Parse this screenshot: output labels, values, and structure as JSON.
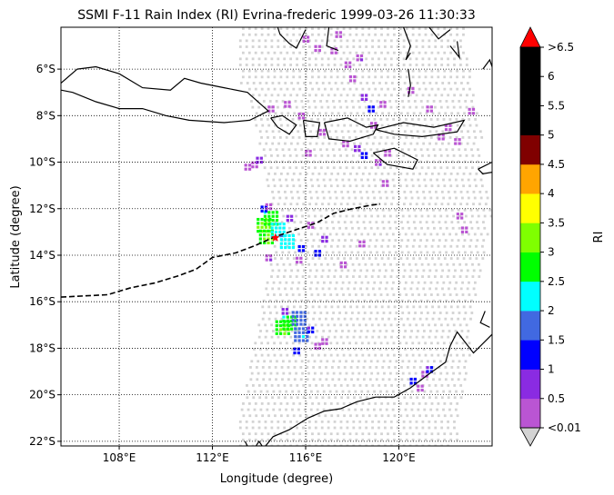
{
  "chart_data": {
    "type": "scatter",
    "title": "SSMI F-11 Rain Index (RI) Evrina-frederic 1999-03-26 11:30:33",
    "xlabel": "Longitude (degree)",
    "ylabel": "Latitude (degree)",
    "xlim": [
      105.5,
      124
    ],
    "ylim": [
      -22.2,
      -4.2
    ],
    "x_ticks": [
      {
        "value": 108,
        "label": "108°E"
      },
      {
        "value": 112,
        "label": "112°E"
      },
      {
        "value": 116,
        "label": "116°E"
      },
      {
        "value": 120,
        "label": "120°E"
      }
    ],
    "y_ticks": [
      {
        "value": -6,
        "label": "6°S"
      },
      {
        "value": -8,
        "label": "8°S"
      },
      {
        "value": -10,
        "label": "10°S"
      },
      {
        "value": -12,
        "label": "12°S"
      },
      {
        "value": -14,
        "label": "14°S"
      },
      {
        "value": -16,
        "label": "16°S"
      },
      {
        "value": -18,
        "label": "18°S"
      },
      {
        "value": -20,
        "label": "20°S"
      },
      {
        "value": -22,
        "label": "22°S"
      }
    ],
    "grid": "dotted",
    "swath_background_color": "#d3d3d3",
    "colorbar": {
      "label": "RI",
      "boundaries": [
        0.01,
        0.5,
        1,
        1.5,
        2,
        2.5,
        3,
        3.5,
        4,
        4.5,
        5,
        5.5,
        6,
        6.5
      ],
      "tick_labels": [
        "<0.01",
        "0.5",
        "1",
        "1.5",
        "2",
        "2.5",
        "3",
        "3.5",
        "4",
        "4.5",
        "5",
        "5.5",
        "6",
        ">6.5"
      ],
      "colors": [
        "#ba55d3",
        "#8a2be2",
        "#0000ff",
        "#4169e1",
        "#00ffff",
        "#00ff00",
        "#7fff00",
        "#ffff00",
        "#ffa500",
        "#800000",
        "#000000",
        "#000000",
        "#000000"
      ],
      "under_color": "#d3d3d3",
      "over_color": "#ff0000"
    },
    "track": {
      "style": "dashed",
      "color": "#000000",
      "points": [
        [
          105.5,
          -15.8
        ],
        [
          106.5,
          -15.75
        ],
        [
          107.5,
          -15.7
        ],
        [
          108.5,
          -15.4
        ],
        [
          109.5,
          -15.2
        ],
        [
          110.5,
          -14.9
        ],
        [
          111.3,
          -14.6
        ],
        [
          112.0,
          -14.1
        ],
        [
          113.0,
          -13.9
        ],
        [
          113.8,
          -13.6
        ],
        [
          114.7,
          -13.2
        ],
        [
          115.6,
          -12.9
        ],
        [
          116.5,
          -12.6
        ],
        [
          117.2,
          -12.2
        ],
        [
          118.0,
          -12.0
        ],
        [
          118.8,
          -11.85
        ],
        [
          119.2,
          -11.8
        ]
      ],
      "center_marker": {
        "x": 114.7,
        "y": -13.25,
        "color": "#ff0000"
      }
    },
    "rain_clusters": [
      {
        "x": 114.3,
        "y": -12.8,
        "ri": 3.2
      },
      {
        "x": 114.4,
        "y": -13.3,
        "ri": 3.1
      },
      {
        "x": 114.6,
        "y": -12.5,
        "ri": 2.8
      },
      {
        "x": 114.9,
        "y": -13.0,
        "ri": 2.3
      },
      {
        "x": 115.3,
        "y": -13.5,
        "ri": 2.2
      },
      {
        "x": 115.9,
        "y": -13.8,
        "ri": 1.3
      },
      {
        "x": 116.6,
        "y": -14.0,
        "ri": 1.2
      },
      {
        "x": 116.9,
        "y": -13.4,
        "ri": 0.6
      },
      {
        "x": 115.4,
        "y": -12.5,
        "ri": 0.9
      },
      {
        "x": 116.3,
        "y": -12.8,
        "ri": 0.4
      },
      {
        "x": 114.5,
        "y": -14.2,
        "ri": 0.5
      },
      {
        "x": 115.8,
        "y": -14.3,
        "ri": 0.4
      },
      {
        "x": 114.3,
        "y": -12.1,
        "ri": 1.4
      },
      {
        "x": 114.5,
        "y": -12.0,
        "ri": 0.3
      },
      {
        "x": 115.1,
        "y": -17.2,
        "ri": 3.1
      },
      {
        "x": 115.4,
        "y": -17.0,
        "ri": 2.8
      },
      {
        "x": 115.8,
        "y": -16.8,
        "ri": 1.8
      },
      {
        "x": 115.9,
        "y": -17.5,
        "ri": 2.0
      },
      {
        "x": 116.3,
        "y": -17.3,
        "ri": 1.1
      },
      {
        "x": 115.7,
        "y": -18.2,
        "ri": 1.2
      },
      {
        "x": 116.6,
        "y": -18.0,
        "ri": 0.4
      },
      {
        "x": 116.9,
        "y": -17.8,
        "ri": 0.3
      },
      {
        "x": 115.2,
        "y": -16.5,
        "ri": 0.6
      },
      {
        "x": 118.6,
        "y": -9.8,
        "ri": 1.3
      },
      {
        "x": 118.3,
        "y": -9.5,
        "ri": 0.6
      },
      {
        "x": 117.8,
        "y": -9.3,
        "ri": 0.4
      },
      {
        "x": 116.2,
        "y": -9.7,
        "ri": 0.3
      },
      {
        "x": 119.2,
        "y": -10.1,
        "ri": 0.5
      },
      {
        "x": 119.6,
        "y": -9.7,
        "ri": 0.4
      },
      {
        "x": 113.9,
        "y": -10.2,
        "ri": 0.3
      },
      {
        "x": 114.1,
        "y": -10.0,
        "ri": 0.6
      },
      {
        "x": 113.6,
        "y": -10.3,
        "ri": 0.3
      },
      {
        "x": 116.1,
        "y": -4.8,
        "ri": 0.3
      },
      {
        "x": 116.6,
        "y": -5.2,
        "ri": 0.4
      },
      {
        "x": 117.3,
        "y": -5.3,
        "ri": 0.3
      },
      {
        "x": 117.9,
        "y": -5.9,
        "ri": 0.3
      },
      {
        "x": 118.4,
        "y": -5.6,
        "ri": 0.5
      },
      {
        "x": 117.5,
        "y": -4.6,
        "ri": 0.3
      },
      {
        "x": 118.1,
        "y": -6.5,
        "ri": 0.3
      },
      {
        "x": 118.6,
        "y": -7.3,
        "ri": 0.6
      },
      {
        "x": 118.9,
        "y": -7.8,
        "ri": 1.2
      },
      {
        "x": 119.4,
        "y": -7.6,
        "ri": 0.4
      },
      {
        "x": 119.0,
        "y": -8.5,
        "ri": 0.3
      },
      {
        "x": 115.3,
        "y": -7.6,
        "ri": 0.3
      },
      {
        "x": 114.6,
        "y": -7.8,
        "ri": 0.4
      },
      {
        "x": 116.8,
        "y": -8.8,
        "ri": 0.3
      },
      {
        "x": 115.9,
        "y": -8.1,
        "ri": 0.3
      },
      {
        "x": 120.6,
        "y": -7.0,
        "ri": 0.3
      },
      {
        "x": 121.4,
        "y": -7.8,
        "ri": 0.3
      },
      {
        "x": 121.9,
        "y": -9.0,
        "ri": 0.4
      },
      {
        "x": 122.2,
        "y": -8.6,
        "ri": 0.3
      },
      {
        "x": 123.2,
        "y": -7.9,
        "ri": 0.4
      },
      {
        "x": 122.6,
        "y": -9.2,
        "ri": 0.3
      },
      {
        "x": 121.2,
        "y": -19.2,
        "ri": 0.4
      },
      {
        "x": 121.4,
        "y": -19.0,
        "ri": 1.1
      },
      {
        "x": 120.7,
        "y": -19.5,
        "ri": 1.2
      },
      {
        "x": 121.0,
        "y": -19.8,
        "ri": 0.4
      },
      {
        "x": 119.5,
        "y": -11.0,
        "ri": 0.4
      },
      {
        "x": 117.7,
        "y": -14.5,
        "ri": 0.4
      },
      {
        "x": 118.5,
        "y": -13.6,
        "ri": 0.3
      },
      {
        "x": 122.7,
        "y": -12.4,
        "ri": 0.3
      },
      {
        "x": 122.9,
        "y": -13.0,
        "ri": 0.3
      }
    ]
  }
}
